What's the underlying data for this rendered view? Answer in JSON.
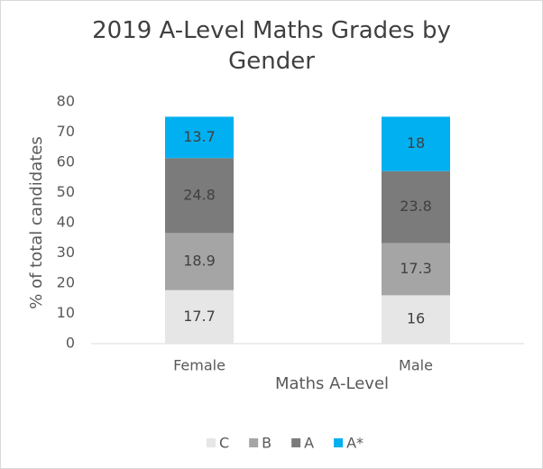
{
  "chart_data": {
    "type": "stacked_bar",
    "title": "2019 A-Level Maths Grades by Gender",
    "x_label": "Maths A-Level",
    "y_label": "% of total candidates",
    "categories": [
      "Female",
      "Male"
    ],
    "series": [
      {
        "name": "C",
        "color": "#e7e6e6",
        "values": [
          17.7,
          16
        ]
      },
      {
        "name": "B",
        "color": "#a5a5a5",
        "values": [
          18.9,
          17.3
        ]
      },
      {
        "name": "A",
        "color": "#7b7b7b",
        "values": [
          24.8,
          23.8
        ]
      },
      {
        "name": "A*",
        "color": "#00b0f0",
        "values": [
          13.7,
          18
        ]
      }
    ],
    "ylim": [
      0,
      80
    ],
    "yticks": [
      0,
      10,
      20,
      30,
      40,
      50,
      60,
      70,
      80
    ],
    "grid": false,
    "legend": "bottom"
  }
}
